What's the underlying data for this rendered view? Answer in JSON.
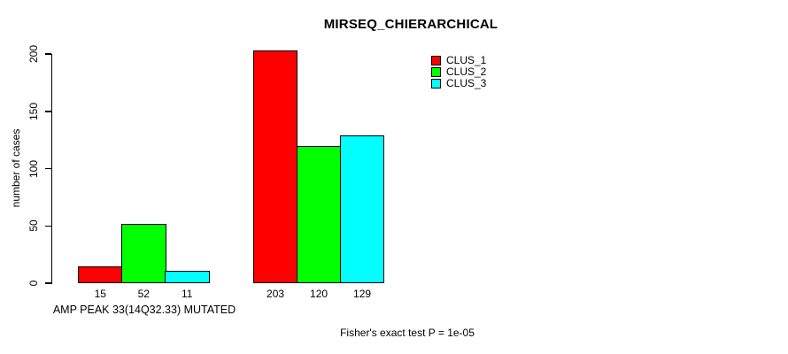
{
  "chart_data": {
    "type": "bar",
    "title": "MIRSEQ_CHIERARCHICAL",
    "ylabel": "number of cases",
    "xlabel": "AMP PEAK 33(14Q32.33) MUTATED",
    "footnote": "Fisher's exact test P = 1e-05",
    "ylim": [
      0,
      200
    ],
    "yticks": [
      0,
      50,
      100,
      150,
      200
    ],
    "grid": false,
    "legend_position": "top-right",
    "categories": [
      "AMP PEAK 33(14Q32.33) MUTATED",
      ""
    ],
    "series": [
      {
        "name": "CLUS_1",
        "color": "#ff0000",
        "values": [
          15,
          203
        ]
      },
      {
        "name": "CLUS_2",
        "color": "#00ff00",
        "values": [
          52,
          120
        ]
      },
      {
        "name": "CLUS_3",
        "color": "#00ffff",
        "values": [
          11,
          129
        ]
      }
    ],
    "bar_value_labels": true
  }
}
